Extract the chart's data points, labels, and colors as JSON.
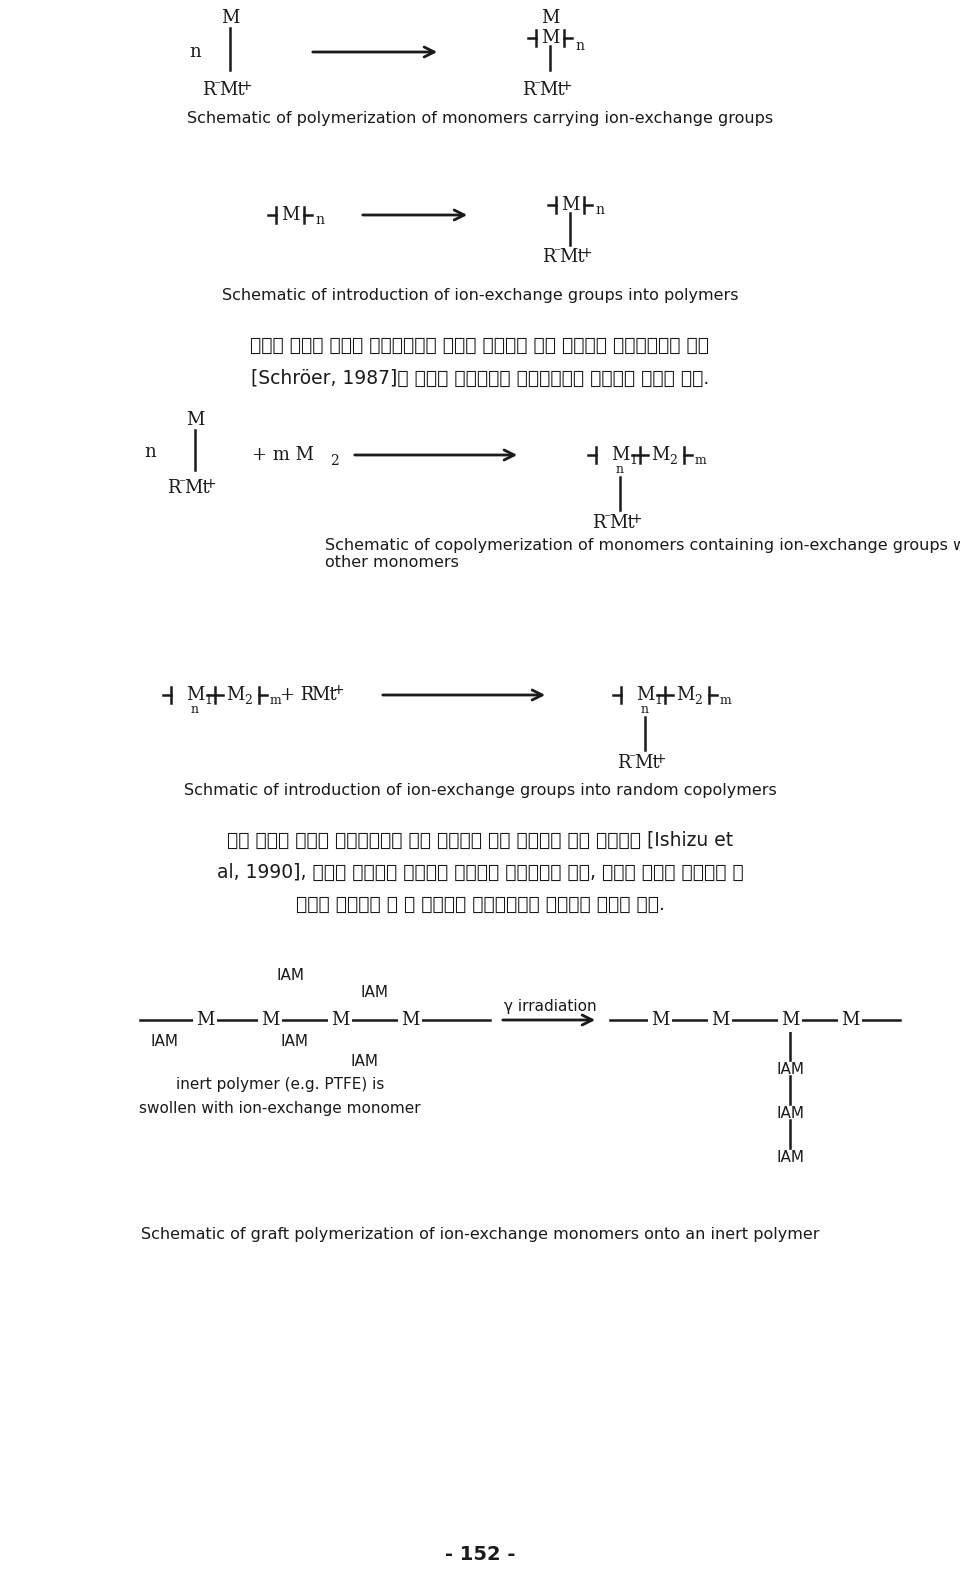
{
  "bg_color": "#ffffff",
  "text_color": "#1a1a1a",
  "fig_width": 9.6,
  "fig_height": 15.78,
  "dpi": 100,
  "section1_caption": "Schematic of polymerization of monomers carrying ion-exchange groups",
  "section2_caption": "Schematic of introduction of ion-exchange groups into polymers",
  "section3_caption": "Schematic of copolymerization of monomers containing ion-exchange groups with\nother monomers",
  "section4_caption": "Schmatic of introduction of ion-exchange groups into random copolymers",
  "section5_caption": "Schematic of graft polymerization of ion-exchange monomers onto an inert polymer",
  "korean1": "불규칙 공중합 방법은 이온교환기가 체가된 단량체와 다른 단량체를 공중합시키는 방법",
  "korean2": "[Schröer, 1987]와 불규칙 공중합체에 이온교환기를 도입하는 방법이 있다.",
  "korean3": "블록 공중합 방법은 이온교환기가 있는 단량체와 없는 다량체의 블록 공중합법 [Ishizu et",
  "korean4": "al, 1990], 비활성 고분자에 이온교환 단량체를 접목시키는 방법, 그리고 비활성 고분자에 단",
  "korean5": "량체를 접목시킨 뒤 그 단량체에 이온교환기를 도입하는 방법이 있다.",
  "page_number": "- 152 -",
  "lw": 1.8,
  "fs_main": 13,
  "fs_sub": 10,
  "fs_cap": 11.5,
  "fs_korean": 13.5
}
